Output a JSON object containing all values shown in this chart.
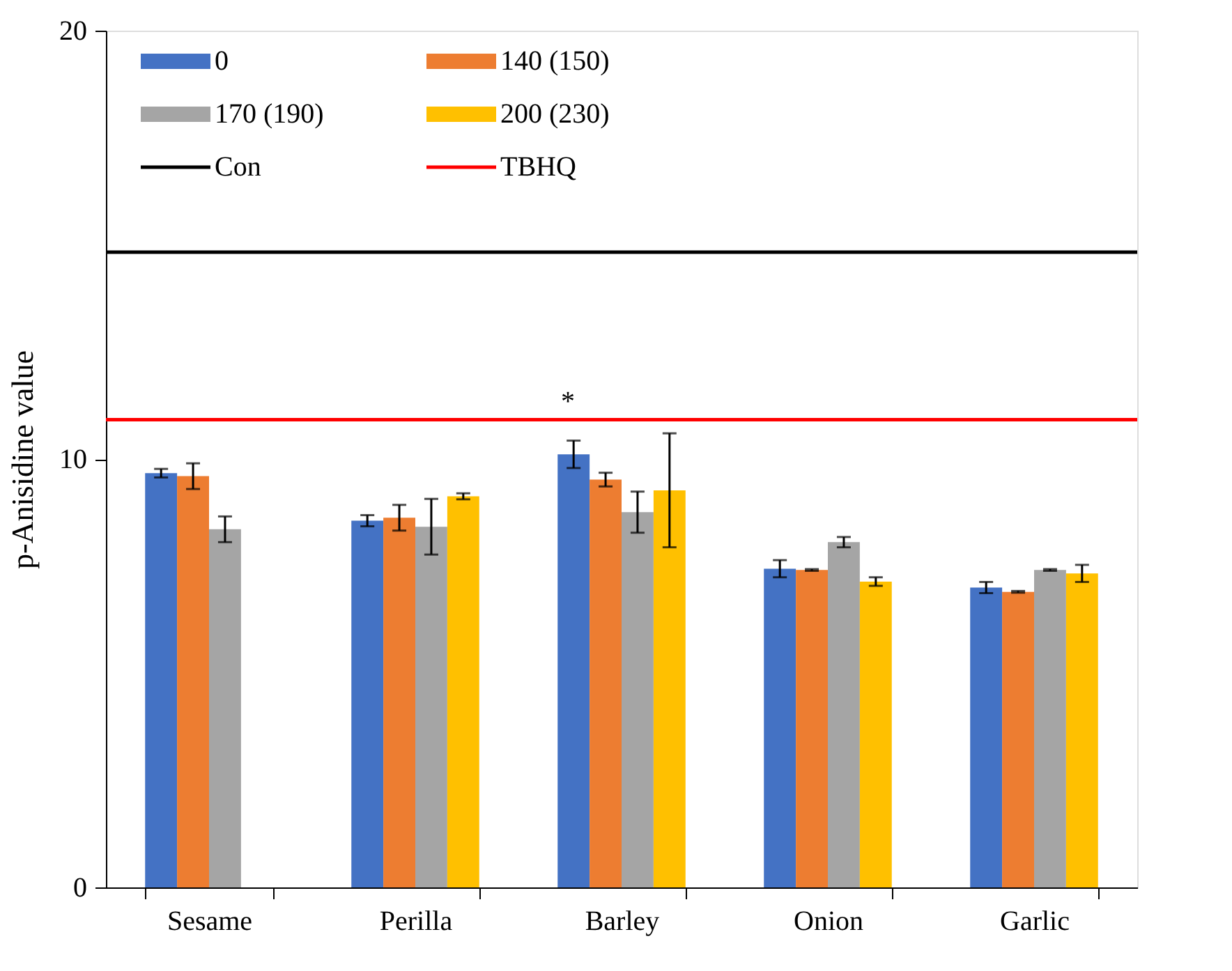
{
  "chart_data": {
    "type": "bar",
    "ylabel": "p-Anisidine value",
    "categories": [
      "Sesame",
      "Perilla",
      "Barley",
      "Onion",
      "Garlic"
    ],
    "series": [
      {
        "name": "0",
        "color": "#4472c4",
        "values": [
          9.67,
          8.56,
          10.11,
          7.44,
          7.0
        ],
        "errors": [
          0.1,
          0.13,
          0.32,
          0.2,
          0.13
        ]
      },
      {
        "name": "140 (150)",
        "color": "#ed7d31",
        "values": [
          9.6,
          8.63,
          9.52,
          7.41,
          6.9
        ],
        "errors": [
          0.3,
          0.3,
          0.16,
          0.02,
          0.02
        ]
      },
      {
        "name": "170 (190)",
        "color": "#a5a5a5",
        "values": [
          8.36,
          8.42,
          8.76,
          8.06,
          7.41
        ],
        "errors": [
          0.3,
          0.65,
          0.48,
          0.12,
          0.02
        ]
      },
      {
        "name": "200 (230)",
        "color": "#ffc000",
        "values": [
          null,
          9.13,
          9.27,
          7.14,
          7.33
        ],
        "errors": [
          null,
          0.07,
          1.33,
          0.1,
          0.2
        ]
      }
    ],
    "ref_lines": [
      {
        "axis": "y",
        "value": 14.83,
        "label": "Con",
        "color": "#000000"
      },
      {
        "axis": "y",
        "value": 10.92,
        "label": "TBHQ",
        "color": "#ff0000"
      }
    ],
    "annotations": [
      "*"
    ],
    "ylim": [
      0,
      20
    ],
    "yticks": [
      0,
      10,
      20
    ],
    "grid": false,
    "legend": "top left"
  }
}
